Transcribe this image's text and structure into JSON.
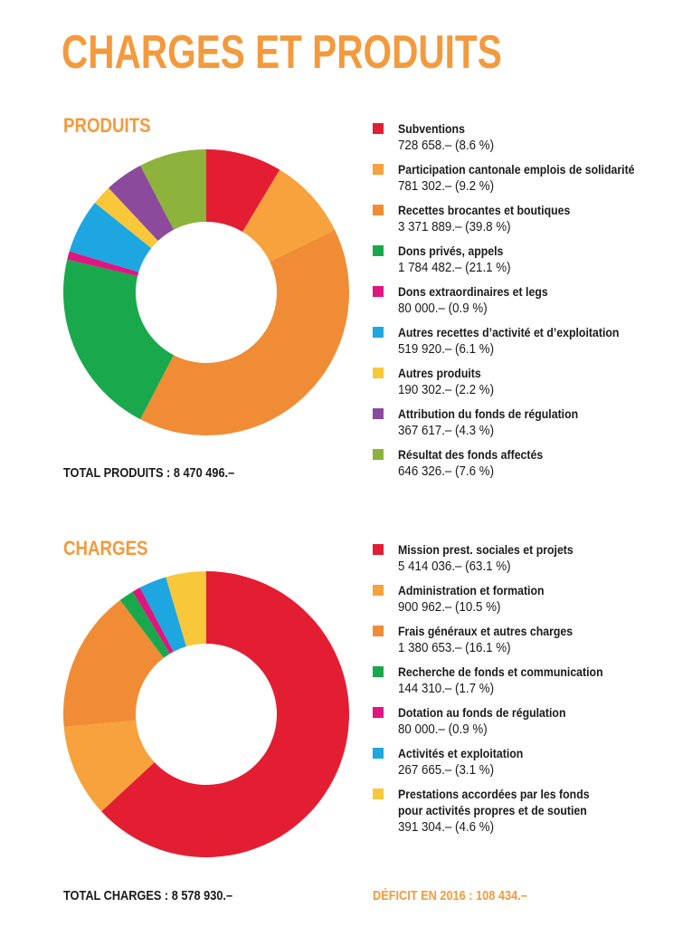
{
  "title": "CHARGES ET PRODUITS",
  "colors": {
    "title": "#f39a3c",
    "red": "#e31e33",
    "light_orange": "#f7a23c",
    "orange": "#f08c36",
    "green": "#1aa84d",
    "magenta": "#e0157f",
    "blue": "#1ea6e0",
    "yellow": "#f9c73a",
    "purple": "#8c4a9c",
    "olive": "#8db33d"
  },
  "chart_data": [
    {
      "type": "pie",
      "title": "PRODUITS",
      "total": "TOTAL PRODUITS : 8 470 496.–",
      "categories": [
        "Subventions",
        "Participation cantonale emplois de solidarité",
        "Recettes brocantes et boutiques",
        "Dons privés, appels",
        "Dons extraordinaires et legs",
        "Autres recettes d’activité et d’exploitation",
        "Autres produits",
        "Attribution du fonds de régulation",
        "Résultat des fonds affectés"
      ],
      "values": [
        728658,
        781302,
        3371889,
        1784482,
        80000,
        519920,
        190302,
        367617,
        646326
      ],
      "value_labels": [
        "728 658.– (8.6 %)",
        "781 302.– (9.2 %)",
        "3 371 889.– (39.8 %)",
        "1 784 482.– (21.1 %)",
        "80 000.– (0.9 %)",
        "519 920.– (6.1 %)",
        "190 302.– (2.2 %)",
        "367 617.– (4.3 %)",
        "646 326.– (7.6 %)"
      ],
      "colors": [
        "#e31e33",
        "#f7a23c",
        "#f08c36",
        "#1aa84d",
        "#e0157f",
        "#1ea6e0",
        "#f9c73a",
        "#8c4a9c",
        "#8db33d"
      ]
    },
    {
      "type": "pie",
      "title": "CHARGES",
      "total": "TOTAL CHARGES : 8 578 930.–",
      "categories": [
        "Mission prest. sociales et projets",
        "Administration et formation",
        "Frais généraux et autres charges",
        "Recherche de fonds et communication",
        "Dotation au fonds de régulation",
        "Activités et exploitation",
        "Prestations accordées par les fonds pour activités propres et de soutien"
      ],
      "label_lines": [
        [
          "Mission prest. sociales et projets"
        ],
        [
          "Administration et formation"
        ],
        [
          "Frais généraux et autres charges"
        ],
        [
          "Recherche de fonds et communication"
        ],
        [
          "Dotation au fonds de régulation"
        ],
        [
          "Activités et exploitation"
        ],
        [
          "Prestations accordées par les fonds",
          "pour activités propres et de soutien"
        ]
      ],
      "values": [
        5414036,
        900962,
        1380653,
        144310,
        80000,
        267665,
        391304
      ],
      "value_labels": [
        "5 414 036.– (63.1 %)",
        "900 962.– (10.5 %)",
        "1 380 653.– (16.1 %)",
        "144 310.– (1.7 %)",
        "80 000.– (0.9 %)",
        "267 665.– (3.1 %)",
        "391 304.– (4.6 %)"
      ],
      "colors": [
        "#e31e33",
        "#f7a23c",
        "#f08c36",
        "#1aa84d",
        "#e0157f",
        "#1ea6e0",
        "#f9c73a"
      ]
    }
  ],
  "deficit": "DÉFICIT EN 2016 : 108 434.–"
}
